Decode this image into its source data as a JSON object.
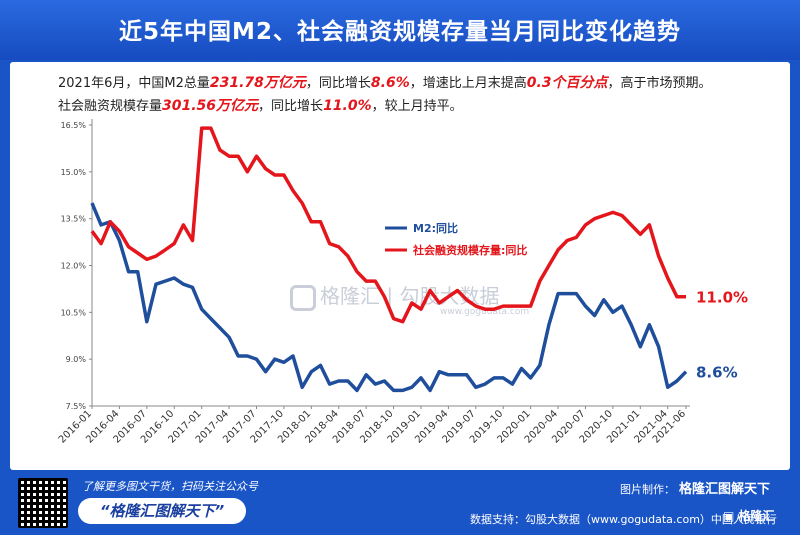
{
  "header": {
    "title": "近5年中国M2、社会融资规模存量当月同比变化趋势"
  },
  "description": {
    "line1": [
      {
        "text": "2021年6月，中国M2总量",
        "hl": false
      },
      {
        "text": "231.78万亿元",
        "hl": true
      },
      {
        "text": "，同比增长",
        "hl": false
      },
      {
        "text": "8.6%",
        "hl": true
      },
      {
        "text": "，增速比上月末提高",
        "hl": false
      },
      {
        "text": "0.3个百分点",
        "hl": true
      },
      {
        "text": "，高于市场预期。",
        "hl": false
      }
    ],
    "line2": [
      {
        "text": "社会融资规模存量",
        "hl": false
      },
      {
        "text": "301.56万亿元",
        "hl": true
      },
      {
        "text": "，同比增长",
        "hl": false
      },
      {
        "text": "11.0%",
        "hl": true
      },
      {
        "text": "，较上月持平。",
        "hl": false
      }
    ]
  },
  "watermark": {
    "text": "格隆汇 | 勾股大数据",
    "sub": "www.gogudata.com"
  },
  "footer": {
    "small_text": "了解更多图文干货，扫码关注公众号",
    "slogan": "“格隆汇图解天下”",
    "credit_label": "图片制作：",
    "credit_brand": "格隆汇图解天下",
    "data_support": "数据支持：勾股大数据（www.gogudata.com）中国人民银行",
    "logo_text": "格隆汇"
  },
  "colors": {
    "m2": "#1f4e9c",
    "tsf": "#e4161c",
    "axis": "#888888"
  },
  "chart_data": {
    "type": "line",
    "title": "",
    "xlabel": "",
    "ylabel": "",
    "ylim": [
      7.5,
      16.5
    ],
    "yticks": [
      "7.5%",
      "9.0%",
      "10.5%",
      "12.0%",
      "13.5%",
      "15.0%",
      "16.5%"
    ],
    "ytick_values": [
      7.5,
      9.0,
      10.5,
      12.0,
      13.5,
      15.0,
      16.5
    ],
    "xtick_labels": [
      "2016-01",
      "2016-04",
      "2016-07",
      "2016-10",
      "2017-01",
      "2017-04",
      "2017-07",
      "2017-10",
      "2018-01",
      "2018-04",
      "2018-07",
      "2018-10",
      "2019-01",
      "2019-04",
      "2019-07",
      "2019-10",
      "2020-01",
      "2020-04",
      "2020-07",
      "2020-10",
      "2021-01",
      "2021-04",
      "2021-06"
    ],
    "legend_position": "center",
    "grid": false,
    "series": [
      {
        "name": "M2:同比",
        "end_label": "8.6%",
        "values": [
          14.0,
          13.3,
          13.4,
          12.8,
          11.8,
          11.8,
          10.2,
          11.4,
          11.5,
          11.6,
          11.4,
          11.3,
          10.6,
          10.3,
          10.0,
          9.7,
          9.1,
          9.1,
          9.0,
          8.6,
          9.0,
          8.9,
          9.1,
          8.1,
          8.6,
          8.8,
          8.2,
          8.3,
          8.3,
          8.0,
          8.5,
          8.2,
          8.3,
          8.0,
          8.0,
          8.1,
          8.4,
          8.0,
          8.6,
          8.5,
          8.5,
          8.5,
          8.1,
          8.2,
          8.4,
          8.4,
          8.2,
          8.7,
          8.4,
          8.8,
          10.1,
          11.1,
          11.1,
          11.1,
          10.7,
          10.4,
          10.9,
          10.5,
          10.7,
          10.1,
          9.4,
          10.1,
          9.4,
          8.1,
          8.3,
          8.6
        ]
      },
      {
        "name": "社会融资规模存量:同比",
        "end_label": "11.0%",
        "values": [
          13.1,
          12.7,
          13.4,
          13.1,
          12.6,
          12.4,
          12.2,
          12.3,
          12.5,
          12.7,
          13.3,
          12.8,
          16.4,
          16.4,
          15.7,
          15.5,
          15.5,
          15.0,
          15.5,
          15.1,
          14.9,
          14.9,
          14.4,
          14.0,
          13.4,
          13.4,
          12.7,
          12.6,
          12.3,
          11.8,
          11.5,
          11.5,
          11.0,
          10.3,
          10.2,
          10.8,
          10.6,
          11.2,
          10.8,
          11.0,
          11.2,
          10.9,
          10.7,
          10.6,
          10.6,
          10.7,
          10.7,
          10.7,
          10.7,
          11.5,
          12.0,
          12.5,
          12.8,
          12.9,
          13.3,
          13.5,
          13.6,
          13.7,
          13.6,
          13.3,
          13.0,
          13.3,
          12.3,
          11.6,
          11.0,
          11.0
        ]
      }
    ]
  }
}
